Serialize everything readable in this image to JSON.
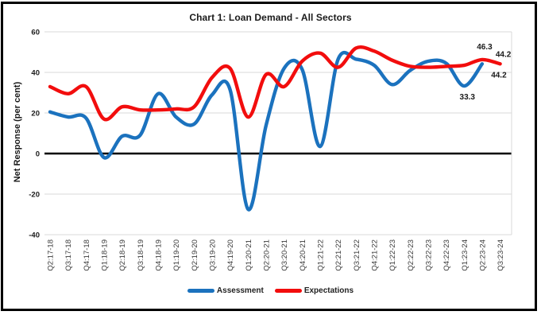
{
  "chart": {
    "title": "Chart 1: Loan Demand - All Sectors",
    "ylabel": "Net Response (per cent)"
  },
  "chart_data": {
    "type": "line",
    "title": "Chart 1: Loan Demand - All Sectors",
    "xlabel": "",
    "ylabel": "Net Response (per cent)",
    "ylim": [
      -40,
      60
    ],
    "yticks": [
      60,
      40,
      20,
      0,
      -20,
      -40
    ],
    "grid": true,
    "smooth": true,
    "legend_position": "bottom",
    "categories": [
      "Q2:17-18",
      "Q3:17-18",
      "Q4:17-18",
      "Q1:18-19",
      "Q2:18-19",
      "Q3:18-19",
      "Q4:18-19",
      "Q1:19-20",
      "Q2:19-20",
      "Q3:19-20",
      "Q4:19-20",
      "Q1:20-21",
      "Q2:20-21",
      "Q3:20-21",
      "Q4:20-21",
      "Q1:21-22",
      "Q2:21-22",
      "Q3:21-22",
      "Q4:21-22",
      "Q1:22-23",
      "Q2:22-23",
      "Q3:22-23",
      "Q4:22-23",
      "Q1:23-24",
      "Q2:23-24",
      "Q3:23-24"
    ],
    "series": [
      {
        "name": "Assessment",
        "color": "#1B72BE",
        "values": [
          20.5,
          18,
          17.5,
          -2,
          8.5,
          9,
          29.5,
          18,
          14.5,
          29,
          31.5,
          -27.5,
          14,
          42,
          41.5,
          3.5,
          46.5,
          46.5,
          43.5,
          34,
          41,
          45.5,
          44.5,
          33.3,
          44.2,
          null
        ]
      },
      {
        "name": "Expectations",
        "color": "#F20D0D",
        "values": [
          33,
          29.5,
          33,
          17,
          23,
          21.5,
          21.5,
          22,
          23,
          37.5,
          42,
          18,
          39,
          33,
          45.5,
          49.5,
          42.5,
          52,
          50.5,
          46,
          43,
          42.5,
          43,
          43.5,
          46.3,
          44.2
        ]
      }
    ],
    "annotations": [
      {
        "series": "Expectations",
        "category": "Q2:23-24",
        "text": "46.3"
      },
      {
        "series": "Expectations",
        "category": "Q3:23-24",
        "text": "44.2"
      },
      {
        "series": "Assessment",
        "category": "Q2:23-24",
        "text": "44.2"
      },
      {
        "series": "Assessment",
        "category": "Q1:23-24",
        "text": "33.3"
      }
    ],
    "colors": {
      "grid": "#D9D9D9",
      "zero_line": "#000000",
      "tick_text": "#3B3B3B",
      "label_text": "#1A1A1A"
    }
  },
  "legend": {
    "items": [
      {
        "label": "Assessment"
      },
      {
        "label": "Expectations"
      }
    ]
  }
}
